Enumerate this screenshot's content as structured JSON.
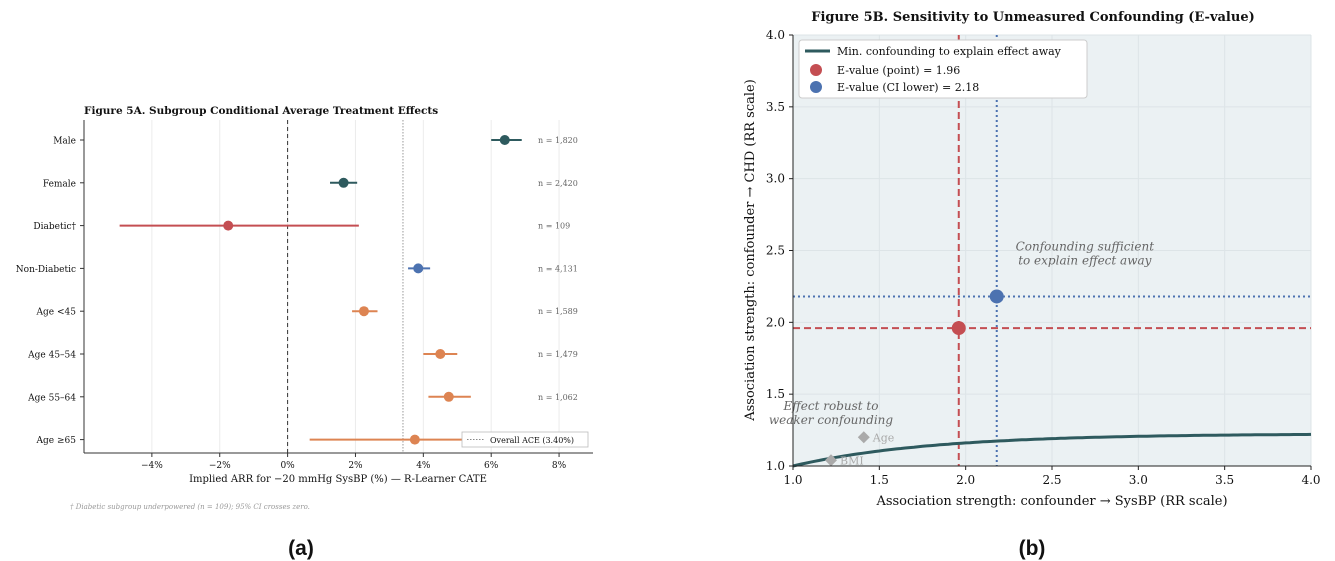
{
  "panel_labels": [
    "(a)",
    "(b)"
  ],
  "chart_data": [
    {
      "type": "forest",
      "title": "Figure 5A. Subgroup Conditional Average Treatment Effects",
      "xlabel": "Implied ARR for −20 mmHg SysBP (%) — R-Learner CATE",
      "ylabel": "",
      "xlim": [
        -6,
        9
      ],
      "xticks": [
        -4,
        -2,
        0,
        2,
        4,
        6,
        8
      ],
      "xtick_labels": [
        "−4%",
        "−2%",
        "0%",
        "2%",
        "4%",
        "6%",
        "8%"
      ],
      "reference_line": 0,
      "overall_ace": 3.4,
      "legend": {
        "label": "Overall ACE (3.40%)",
        "placement": "lower-right"
      },
      "grid": true,
      "subgroups": [
        {
          "label": "Male",
          "estimate": 6.4,
          "ci": [
            6.0,
            6.9
          ],
          "n": "n = 1,820",
          "color": "#2e5a5e"
        },
        {
          "label": "Female",
          "estimate": 1.65,
          "ci": [
            1.25,
            2.05
          ],
          "n": "n = 2,420",
          "color": "#2e5a5e"
        },
        {
          "label": "Diabetic†",
          "estimate": -1.75,
          "ci": [
            -4.95,
            2.1
          ],
          "n": "n = 109",
          "color": "#c44e52"
        },
        {
          "label": "Non-Diabetic",
          "estimate": 3.85,
          "ci": [
            3.55,
            4.2
          ],
          "n": "n = 4,131",
          "color": "#4c72b0"
        },
        {
          "label": "Age <45",
          "estimate": 2.25,
          "ci": [
            1.9,
            2.65
          ],
          "n": "n = 1,589",
          "color": "#dd8452"
        },
        {
          "label": "Age 45–54",
          "estimate": 4.5,
          "ci": [
            4.0,
            5.0
          ],
          "n": "n = 1,479",
          "color": "#dd8452"
        },
        {
          "label": "Age 55–64",
          "estimate": 4.75,
          "ci": [
            4.15,
            5.4
          ],
          "n": "n = 1,062",
          "color": "#dd8452"
        },
        {
          "label": "Age ≥65",
          "estimate": 3.75,
          "ci": [
            0.65,
            5.2
          ],
          "n": "",
          "color": "#dd8452"
        }
      ],
      "footnote": "† Diabetic subgroup underpowered (n = 109); 95% CI crosses zero."
    },
    {
      "type": "line",
      "title": "Figure 5B. Sensitivity to Unmeasured Confounding (E-value)",
      "xlabel": "Association strength: confounder → SysBP (RR scale)",
      "ylabel": "Association strength: confounder → CHD (RR scale)",
      "xlim": [
        1.0,
        4.0
      ],
      "ylim": [
        1.0,
        4.0
      ],
      "xticks": [
        1.0,
        1.5,
        2.0,
        2.5,
        3.0,
        3.5,
        4.0
      ],
      "xtick_labels": [
        "1.0",
        "1.5",
        "2.0",
        "2.5",
        "3.0",
        "3.5",
        "4.0"
      ],
      "yticks": [
        1.0,
        1.5,
        2.0,
        2.5,
        3.0,
        3.5,
        4.0
      ],
      "ytick_labels": [
        "1.0",
        "1.5",
        "2.0",
        "2.5",
        "3.0",
        "3.5",
        "4.0"
      ],
      "grid": true,
      "legend_placement": "upper-left",
      "bound_rr": 1.2941,
      "series": [
        {
          "name": "Min. confounding to explain effect away",
          "kind": "curve",
          "color": "#2e5a5e"
        },
        {
          "name": "E-value (point) = 1.96",
          "kind": "point",
          "x": 1.96,
          "y": 1.96,
          "color": "#c44e52"
        },
        {
          "name": "E-value (CI lower) = 2.18",
          "kind": "point",
          "x": 2.18,
          "y": 2.18,
          "color": "#4c72b0"
        }
      ],
      "covariates": [
        {
          "label": "Age",
          "x": 1.41,
          "y": 1.2
        },
        {
          "label": "BMI",
          "x": 1.22,
          "y": 1.04
        }
      ],
      "annotations": [
        {
          "lines": [
            "Confounding sufficient",
            "to explain effect away"
          ],
          "x": 2.69,
          "y": 2.5
        },
        {
          "lines": [
            "Effect robust to",
            "weaker confounding"
          ],
          "x": 1.22,
          "y": 1.39
        }
      ]
    }
  ]
}
